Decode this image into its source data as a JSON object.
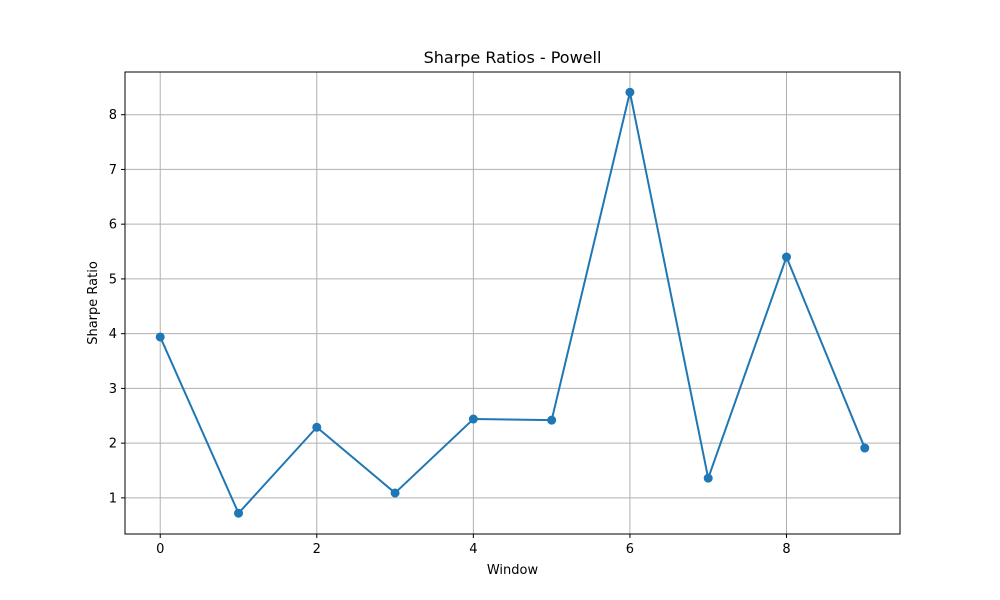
{
  "chart_data": {
    "type": "line",
    "title": "Sharpe Ratios - Powell",
    "xlabel": "Window",
    "ylabel": "Sharpe Ratio",
    "xlim": [
      -0.45,
      9.45
    ],
    "ylim": [
      0.34,
      8.78
    ],
    "xticks": [
      0,
      2,
      4,
      6,
      8
    ],
    "yticks": [
      1,
      2,
      3,
      4,
      5,
      6,
      7,
      8
    ],
    "grid": true,
    "series": [
      {
        "x": [
          0,
          1,
          2,
          3,
          4,
          5,
          6,
          7,
          8,
          9
        ],
        "values": [
          3.94,
          0.72,
          2.29,
          1.09,
          2.44,
          2.42,
          8.41,
          1.36,
          5.4,
          1.91
        ],
        "color": "#1f77b4",
        "marker": "circle"
      }
    ]
  }
}
